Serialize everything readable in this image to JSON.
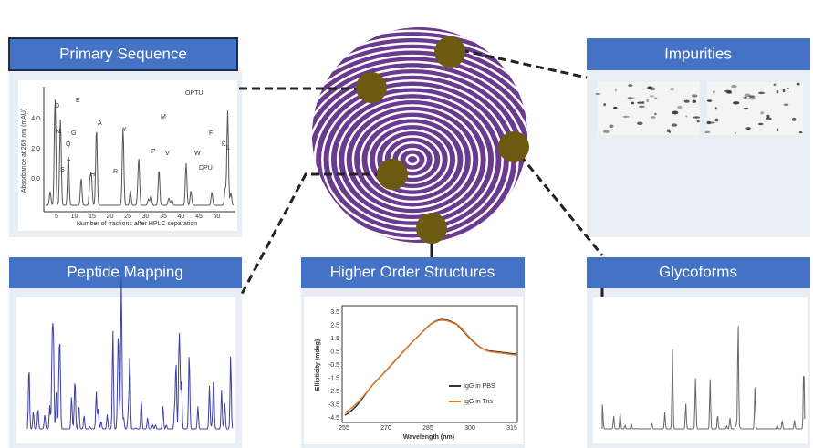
{
  "panels": [
    {
      "title": "Primary Sequence"
    },
    {
      "title": "Impurities"
    },
    {
      "title": "Peptide Mapping"
    },
    {
      "title": "Higher Order Structures"
    },
    {
      "title": "Glycoforms"
    }
  ],
  "primary_chart": {
    "y_label": "Absorbance at 269 nm (mAU)",
    "x_label": "Number of fractions after HPLC separation",
    "y_ticks": [
      "4.0",
      "2.0",
      "0.0"
    ],
    "x_ticks": [
      "5",
      "10",
      "15",
      "20",
      "25",
      "30",
      "35",
      "40",
      "45",
      "50"
    ],
    "peaks": [
      "D",
      "N",
      "S",
      "Q",
      "G",
      "T",
      "E",
      "H",
      "A",
      "R",
      "Y",
      "P",
      "M",
      "V",
      "OPTU",
      "W",
      "DPU",
      "F",
      "K",
      "L"
    ]
  },
  "cd_chart": {
    "y_label": "Ellipticity (mdeg)",
    "x_label": "Wavelength (nm)",
    "y_ticks": [
      "3.5",
      "2.5",
      "1.5",
      "0.5",
      "-0.5",
      "-1.5",
      "-2.5",
      "-3.5",
      "-4.5"
    ],
    "x_ticks": [
      "255",
      "270",
      "285",
      "300",
      "315"
    ],
    "legend": [
      "IgG in PBS",
      "IgG in Tris"
    ]
  }
}
